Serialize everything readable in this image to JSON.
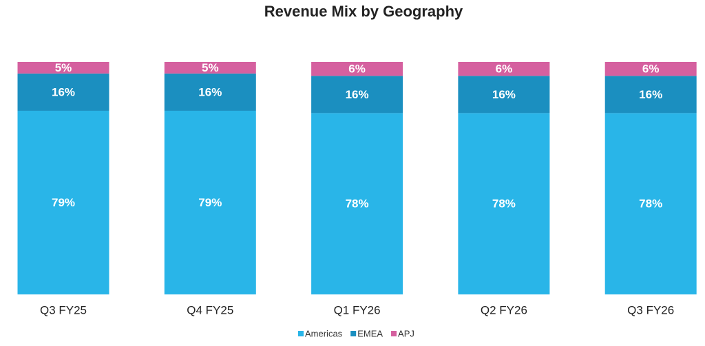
{
  "chart_data": {
    "type": "stacked-bar",
    "title": "Revenue Mix by Geography",
    "categories": [
      "Q3 FY25",
      "Q4 FY25",
      "Q1 FY26",
      "Q2 FY26",
      "Q3 FY26"
    ],
    "series": [
      {
        "name": "Americas",
        "color": "#29b5e8",
        "values": [
          79,
          79,
          78,
          78,
          78
        ],
        "value_labels": [
          "79%",
          "79%",
          "78%",
          "78%",
          "78%"
        ]
      },
      {
        "name": "EMEA",
        "color": "#1b8fc0",
        "values": [
          16,
          16,
          16,
          16,
          16
        ],
        "value_labels": [
          "16%",
          "16%",
          "16%",
          "16%",
          "16%"
        ]
      },
      {
        "name": "APJ",
        "color": "#d5609f",
        "values": [
          5,
          5,
          6,
          6,
          6
        ],
        "value_labels": [
          "5%",
          "5%",
          "6%",
          "6%",
          "6%"
        ]
      }
    ]
  }
}
